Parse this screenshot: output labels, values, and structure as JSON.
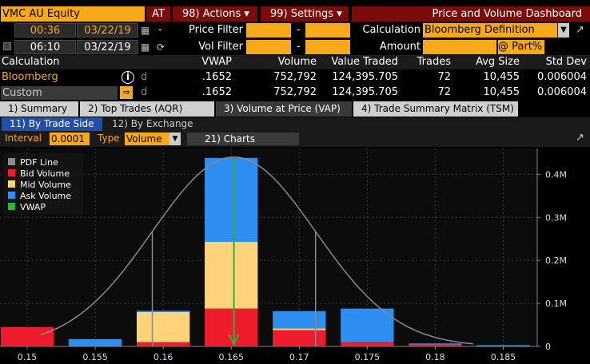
{
  "header": {
    "ticker": "VMC AU Equity",
    "at_label": "AT",
    "actions_label": "98) Actions ▾",
    "settings_label": "99) Settings ▾",
    "title": "Price and Volume Dashboard"
  },
  "filters": {
    "row1": {
      "time": "00:36",
      "date": "03/22/19",
      "dash": "-",
      "label": "Price Filter",
      "dash2": "-",
      "calc_label": "Calculation",
      "calc_value": "Bloomberg Definition"
    },
    "row2": {
      "time": "06:10",
      "date": "03/22/19",
      "label": "Vol Filter",
      "dash2": "-",
      "amount_label": "Amount",
      "part_label": "@ Part%"
    }
  },
  "table": {
    "headers": [
      "Calculation",
      "VWAP",
      "Volume",
      "Value Traded",
      "Trades",
      "Avg Size",
      "Std Dev"
    ],
    "rows": [
      {
        "name": "Bloomberg",
        "d": "d",
        "vwap": ".1652",
        "volume": "752,792",
        "value": "124,395.705",
        "trades": "72",
        "avg": "10,455",
        "std": "0.006004"
      },
      {
        "name": "Custom",
        "d": "d",
        "vwap": ".1652",
        "volume": "752,792",
        "value": "124,395.705",
        "trades": "72",
        "avg": "10,455",
        "std": "0.006004"
      }
    ]
  },
  "tabs": [
    "1) Summary",
    "2) Top Trades (AQR)",
    "3) Volume at Price (VAP)",
    "4) Trade Summary Matrix (TSM)"
  ],
  "subtabs": [
    "11) By Trade Side",
    "12) By Exchange"
  ],
  "chart_controls": {
    "interval_label": "Interval",
    "interval_value": "0.0001",
    "type_label": "Type",
    "type_value": "Volume",
    "charts_button": "21) Charts"
  },
  "colors": {
    "bid": "#ef1c2d",
    "mid": "#ffd37a",
    "ask": "#2e8ef2",
    "vwap": "#37b037",
    "pdf": "#8a8a8a"
  },
  "chart_data": {
    "type": "bar",
    "stacked": true,
    "legend": [
      "PDF Line",
      "Bid Volume",
      "Mid Volume",
      "Ask Volume",
      "VWAP"
    ],
    "legend_position": "top-left",
    "x_ticks": [
      "0.15",
      "0.155",
      "0.16",
      "0.165",
      "0.17",
      "0.175",
      "0.18",
      "0.185"
    ],
    "y_ticks": [
      "0",
      "0.1M",
      "0.2M",
      "0.3M",
      "0.4M"
    ],
    "xlim": [
      0.148,
      0.1875
    ],
    "ylim": [
      0,
      0.46
    ],
    "y_axis_position": "right",
    "bars": [
      {
        "x": 0.15,
        "bid": 0.045,
        "mid": 0.0,
        "ask": 0.0
      },
      {
        "x": 0.155,
        "bid": 0.0,
        "mid": 0.0,
        "ask": 0.017
      },
      {
        "x": 0.16,
        "bid": 0.01,
        "mid": 0.07,
        "ask": 0.003
      },
      {
        "x": 0.165,
        "bid": 0.088,
        "mid": 0.155,
        "ask": 0.195
      },
      {
        "x": 0.17,
        "bid": 0.038,
        "mid": 0.004,
        "ask": 0.04
      },
      {
        "x": 0.175,
        "bid": 0.01,
        "mid": 0.0,
        "ask": 0.078
      },
      {
        "x": 0.18,
        "bid": 0.004,
        "mid": 0.0,
        "ask": 0.003
      },
      {
        "x": 0.185,
        "bid": 0.0,
        "mid": 0.0,
        "ask": 0.003
      }
    ],
    "vwap_x": 0.1652,
    "pdf": {
      "mean": 0.1652,
      "std": 0.006004,
      "peak": 0.44
    },
    "pdf_drop_lines_x": [
      0.1592,
      0.1712
    ]
  }
}
